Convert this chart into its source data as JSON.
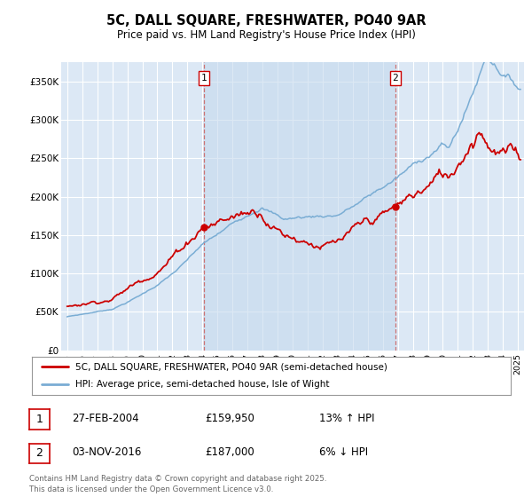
{
  "title": "5C, DALL SQUARE, FRESHWATER, PO40 9AR",
  "subtitle": "Price paid vs. HM Land Registry's House Price Index (HPI)",
  "ylim": [
    0,
    375000
  ],
  "yticks": [
    0,
    50000,
    100000,
    150000,
    200000,
    250000,
    300000,
    350000
  ],
  "ytick_labels": [
    "£0",
    "£50K",
    "£100K",
    "£150K",
    "£200K",
    "£250K",
    "£300K",
    "£350K"
  ],
  "xlim_start": 1994.6,
  "xlim_end": 2025.4,
  "background_color": "#ffffff",
  "plot_bg_color": "#dce8f5",
  "grid_color": "#ffffff",
  "red_line_color": "#cc0000",
  "blue_line_color": "#7aadd4",
  "marker1_date": 2004.12,
  "marker1_price": 159950,
  "marker2_date": 2016.84,
  "marker2_price": 187000,
  "dashed_line_color": "#cc6666",
  "legend_line1": "5C, DALL SQUARE, FRESHWATER, PO40 9AR (semi-detached house)",
  "legend_line2": "HPI: Average price, semi-detached house, Isle of Wight",
  "footer": "Contains HM Land Registry data © Crown copyright and database right 2025.\nThis data is licensed under the Open Government Licence v3.0.",
  "annotation1_text": "1",
  "annotation2_text": "2",
  "table_row1": [
    "1",
    "27-FEB-2004",
    "£159,950",
    "13% ↑ HPI"
  ],
  "table_row2": [
    "2",
    "03-NOV-2016",
    "£187,000",
    "6% ↓ HPI"
  ]
}
